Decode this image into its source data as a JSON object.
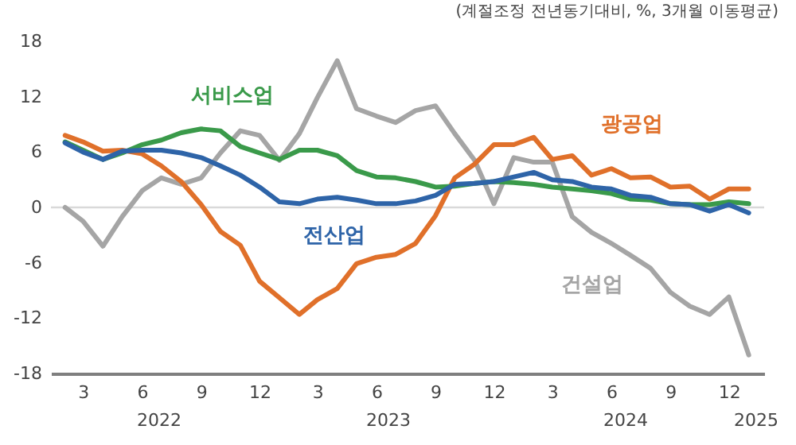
{
  "chart_data": {
    "type": "line",
    "subtitle": "(계절조정 전년동기대비, %, 3개월 이동평균)",
    "x": [
      "2022-02",
      "2022-03",
      "2022-04",
      "2022-05",
      "2022-06",
      "2022-07",
      "2022-08",
      "2022-09",
      "2022-10",
      "2022-11",
      "2022-12",
      "2023-01",
      "2023-02",
      "2023-03",
      "2023-04",
      "2023-05",
      "2023-06",
      "2023-07",
      "2023-08",
      "2023-09",
      "2023-10",
      "2023-11",
      "2023-12",
      "2024-01",
      "2024-02",
      "2024-03",
      "2024-04",
      "2024-05",
      "2024-06",
      "2024-07",
      "2024-08",
      "2024-09",
      "2024-10",
      "2024-11",
      "2024-12",
      "2025-01"
    ],
    "series": [
      {
        "name": "건설업",
        "color": "#a5a5a5",
        "values": [
          0,
          -1.5,
          -4.2,
          -1,
          1.8,
          3.2,
          2.5,
          3.2,
          5.9,
          8.3,
          7.8,
          5.1,
          8,
          11.9,
          15.9,
          10.7,
          9.9,
          9.2,
          10.5,
          11,
          8,
          5.1,
          0.4,
          5.4,
          4.9,
          4.9,
          -1,
          -2.7,
          -3.9,
          -5.2,
          -6.6,
          -9.2,
          -10.7,
          -11.6,
          -9.7,
          -16
        ]
      },
      {
        "name": "광공업",
        "color": "#e0702a",
        "values": [
          7.8,
          7.1,
          6.1,
          6.2,
          5.8,
          4.5,
          2.8,
          0.3,
          -2.6,
          -4.1,
          -8,
          -9.8,
          -11.6,
          -10,
          -8.8,
          -6.1,
          -5.4,
          -5.1,
          -3.9,
          -0.9,
          3.2,
          4.7,
          6.8,
          6.8,
          7.6,
          5.2,
          5.6,
          3.5,
          4.2,
          3.2,
          3.3,
          2.2,
          2.3,
          0.9,
          2,
          2
        ]
      },
      {
        "name": "서비스업",
        "color": "#3a9a4a",
        "values": [
          7.1,
          6.2,
          5.2,
          5.9,
          6.8,
          7.3,
          8.1,
          8.5,
          8.3,
          6.6,
          5.9,
          5.2,
          6.2,
          6.2,
          5.6,
          4,
          3.3,
          3.2,
          2.8,
          2.2,
          2.3,
          2.6,
          2.8,
          2.7,
          2.5,
          2.2,
          2,
          1.8,
          1.5,
          0.9,
          0.8,
          0.4,
          0.3,
          0.3,
          0.6,
          0.4
        ]
      },
      {
        "name": "전산업",
        "color": "#2e64a8",
        "values": [
          7,
          6,
          5.2,
          6.1,
          6.2,
          6.2,
          5.9,
          5.4,
          4.5,
          3.5,
          2.2,
          0.6,
          0.4,
          0.9,
          1.1,
          0.8,
          0.4,
          0.4,
          0.7,
          1.3,
          2.5,
          2.6,
          2.8,
          3.3,
          3.8,
          3,
          2.8,
          2.2,
          2,
          1.3,
          1.1,
          0.4,
          0.3,
          -0.4,
          0.3,
          -0.6
        ]
      }
    ],
    "xlim": [
      "2022-01-10",
      "2025-01-25"
    ],
    "xticks": [
      {
        "value": "2022-03",
        "label": "3"
      },
      {
        "value": "2022-06",
        "label": "6"
      },
      {
        "value": "2022-09",
        "label": "9"
      },
      {
        "value": "2022-12",
        "label": "12"
      },
      {
        "value": "2023-03",
        "label": "3"
      },
      {
        "value": "2023-06",
        "label": "6"
      },
      {
        "value": "2023-09",
        "label": "9"
      },
      {
        "value": "2023-12",
        "label": "12"
      },
      {
        "value": "2024-03",
        "label": "3"
      },
      {
        "value": "2024-06",
        "label": "6"
      },
      {
        "value": "2024-09",
        "label": "9"
      },
      {
        "value": "2024-12",
        "label": "12"
      }
    ],
    "ylim": [
      -18,
      18
    ],
    "yticks": [
      -18,
      -12,
      -6,
      0,
      6,
      12,
      18
    ],
    "ref_lines": [
      {
        "axis": "y",
        "value": 0,
        "color": "#d9d9d9"
      }
    ],
    "annotations": [
      "2022",
      "2023",
      "2024",
      "2025"
    ],
    "grid": false,
    "legend": false
  }
}
